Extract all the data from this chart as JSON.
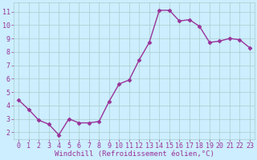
{
  "x": [
    0,
    1,
    2,
    3,
    4,
    5,
    6,
    7,
    8,
    9,
    10,
    11,
    12,
    13,
    14,
    15,
    16,
    17,
    18,
    19,
    20,
    21,
    22,
    23
  ],
  "y": [
    4.4,
    3.7,
    2.9,
    2.6,
    1.8,
    3.0,
    2.7,
    2.7,
    2.8,
    4.3,
    5.6,
    5.9,
    7.4,
    8.7,
    11.1,
    11.1,
    10.3,
    10.4,
    9.9,
    8.7,
    8.8,
    9.0,
    8.9,
    8.3
  ],
  "line_color": "#993399",
  "marker": "D",
  "marker_size": 2.5,
  "bg_color": "#cceeff",
  "grid_color": "#aacccc",
  "xlabel": "Windchill (Refroidissement éolien,°C)",
  "xlabel_color": "#993399",
  "tick_color": "#993399",
  "label_color": "#993399",
  "xlim": [
    -0.5,
    23.5
  ],
  "ylim": [
    1.5,
    11.7
  ],
  "yticks": [
    2,
    3,
    4,
    5,
    6,
    7,
    8,
    9,
    10,
    11
  ],
  "xticks": [
    0,
    1,
    2,
    3,
    4,
    5,
    6,
    7,
    8,
    9,
    10,
    11,
    12,
    13,
    14,
    15,
    16,
    17,
    18,
    19,
    20,
    21,
    22,
    23
  ],
  "tick_labelsize": 6,
  "xlabel_fontsize": 6.5,
  "linewidth": 1.0
}
